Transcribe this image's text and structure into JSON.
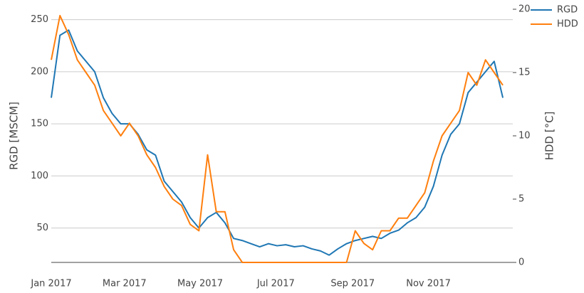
{
  "chart_data": {
    "type": "line",
    "x": [
      "2017-01-01",
      "2017-01-08",
      "2017-01-15",
      "2017-01-22",
      "2017-01-29",
      "2017-02-05",
      "2017-02-12",
      "2017-02-19",
      "2017-02-26",
      "2017-03-05",
      "2017-03-12",
      "2017-03-19",
      "2017-03-26",
      "2017-04-02",
      "2017-04-09",
      "2017-04-16",
      "2017-04-23",
      "2017-04-30",
      "2017-05-07",
      "2017-05-14",
      "2017-05-21",
      "2017-05-28",
      "2017-06-04",
      "2017-06-11",
      "2017-06-18",
      "2017-06-25",
      "2017-07-02",
      "2017-07-09",
      "2017-07-16",
      "2017-07-23",
      "2017-07-30",
      "2017-08-06",
      "2017-08-13",
      "2017-08-20",
      "2017-08-27",
      "2017-09-03",
      "2017-09-10",
      "2017-09-17",
      "2017-09-24",
      "2017-10-01",
      "2017-10-08",
      "2017-10-15",
      "2017-10-22",
      "2017-10-29",
      "2017-11-05",
      "2017-11-12",
      "2017-11-19",
      "2017-11-26",
      "2017-12-03",
      "2017-12-10",
      "2017-12-17",
      "2017-12-24",
      "2017-12-31"
    ],
    "xlim": [
      "2017-01-01",
      "2018-01-08"
    ],
    "xticks": [
      {
        "value": "2017-01-01",
        "label": "Jan 2017"
      },
      {
        "value": "2017-03-01",
        "label": "Mar 2017"
      },
      {
        "value": "2017-05-01",
        "label": "May 2017"
      },
      {
        "value": "2017-07-01",
        "label": "Jul 2017"
      },
      {
        "value": "2017-09-01",
        "label": "Sep 2017"
      },
      {
        "value": "2017-11-01",
        "label": "Nov 2017"
      }
    ],
    "ylabel": "RGD [MSCM]",
    "y2label": "HDD [°C]",
    "ylim": [
      17,
      260
    ],
    "yticks": [
      50,
      100,
      150,
      200,
      250
    ],
    "y2lim": [
      0,
      20
    ],
    "y2ticks": [
      0,
      5,
      10,
      15,
      20
    ],
    "grid": true,
    "legend": "upper right",
    "series": [
      {
        "name": "RGD",
        "color": "#1f77b4",
        "values": [
          175,
          235,
          240,
          220,
          210,
          200,
          175,
          160,
          150,
          150,
          140,
          125,
          120,
          95,
          85,
          75,
          60,
          50,
          60,
          65,
          55,
          40,
          38,
          35,
          32,
          35,
          33,
          34,
          32,
          33,
          30,
          28,
          24,
          30,
          35,
          38,
          40,
          42,
          40,
          45,
          48,
          55,
          60,
          70,
          90,
          120,
          140,
          150,
          180,
          190,
          200,
          210,
          175
        ]
      },
      {
        "name": "HDD",
        "color": "#ff7f0e",
        "axis": "y2",
        "values": [
          16,
          19.5,
          18,
          16,
          15,
          14,
          12,
          11,
          10,
          11,
          10,
          8.5,
          7.5,
          6,
          5,
          4.5,
          3,
          2.5,
          8.5,
          4,
          4,
          1,
          0,
          0,
          0,
          0,
          0,
          0,
          0,
          0,
          0,
          0,
          0,
          0,
          0,
          2.5,
          1.5,
          1,
          2.5,
          2.5,
          3.5,
          3.5,
          4.5,
          5.5,
          8,
          10,
          11,
          12,
          15,
          14,
          16,
          15,
          14
        ]
      }
    ]
  }
}
